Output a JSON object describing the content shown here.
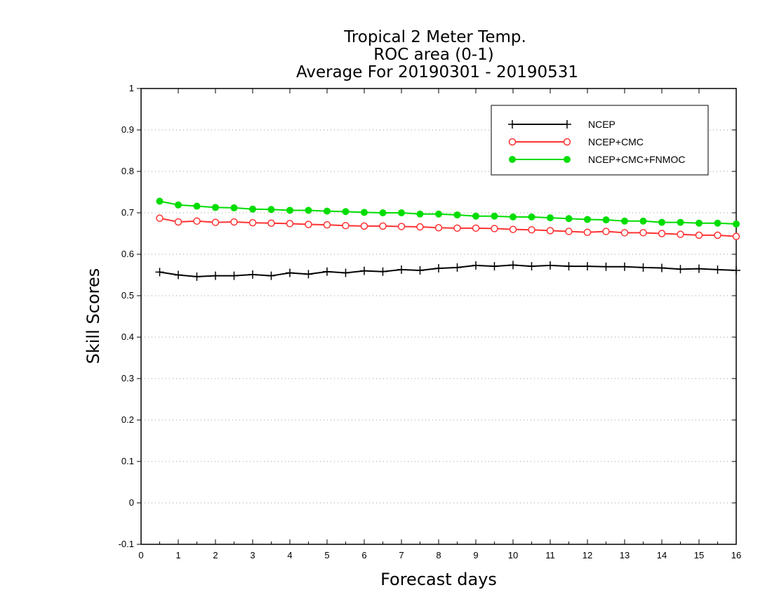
{
  "chart_data": {
    "type": "line",
    "title": "Tropical 2 Meter Temp.",
    "subtitle": "ROC area (0-1)",
    "subtitle2": "Average For 20190301 - 20190531",
    "xlabel": "Forecast days",
    "ylabel": "Skill Scores",
    "xlim": [
      0,
      16
    ],
    "ylim": [
      -0.1,
      1
    ],
    "xticks": [
      "0",
      "1",
      "2",
      "3",
      "4",
      "5",
      "6",
      "7",
      "8",
      "9",
      "10",
      "11",
      "12",
      "13",
      "14",
      "15",
      "16"
    ],
    "yticks": [
      "-0.1",
      "0",
      "0.1",
      "0.2",
      "0.3",
      "0.4",
      "0.5",
      "0.6",
      "0.7",
      "0.8",
      "0.9",
      "1"
    ],
    "grid": "horizontal dotted",
    "legend_position": "top-right",
    "x": [
      0.5,
      1,
      1.5,
      2,
      2.5,
      3,
      3.5,
      4,
      4.5,
      5,
      5.5,
      6,
      6.5,
      7,
      7.5,
      8,
      8.5,
      9,
      9.5,
      10,
      10.5,
      11,
      11.5,
      12,
      12.5,
      13,
      13.5,
      14,
      14.5,
      15,
      15.5,
      16
    ],
    "series": [
      {
        "name": "NCEP",
        "color": "#000000",
        "marker": "plus",
        "values": [
          0.557,
          0.55,
          0.546,
          0.548,
          0.548,
          0.551,
          0.548,
          0.555,
          0.552,
          0.558,
          0.555,
          0.56,
          0.558,
          0.563,
          0.561,
          0.566,
          0.568,
          0.573,
          0.571,
          0.574,
          0.571,
          0.573,
          0.571,
          0.571,
          0.57,
          0.57,
          0.568,
          0.567,
          0.564,
          0.565,
          0.563,
          0.561
        ]
      },
      {
        "name": "NCEP+CMC",
        "color": "#ff3333",
        "marker": "open-circle",
        "values": [
          0.687,
          0.678,
          0.68,
          0.677,
          0.678,
          0.676,
          0.675,
          0.674,
          0.672,
          0.671,
          0.669,
          0.668,
          0.668,
          0.667,
          0.666,
          0.664,
          0.663,
          0.663,
          0.662,
          0.66,
          0.659,
          0.657,
          0.655,
          0.653,
          0.655,
          0.652,
          0.652,
          0.65,
          0.648,
          0.646,
          0.646,
          0.643
        ]
      },
      {
        "name": "NCEP+CMC+FNMOC",
        "color": "#00dd00",
        "marker": "filled-circle",
        "values": [
          0.728,
          0.719,
          0.716,
          0.713,
          0.712,
          0.709,
          0.708,
          0.706,
          0.706,
          0.704,
          0.703,
          0.701,
          0.7,
          0.7,
          0.697,
          0.697,
          0.695,
          0.692,
          0.692,
          0.69,
          0.69,
          0.688,
          0.686,
          0.684,
          0.683,
          0.68,
          0.68,
          0.677,
          0.677,
          0.675,
          0.675,
          0.673
        ]
      }
    ]
  }
}
